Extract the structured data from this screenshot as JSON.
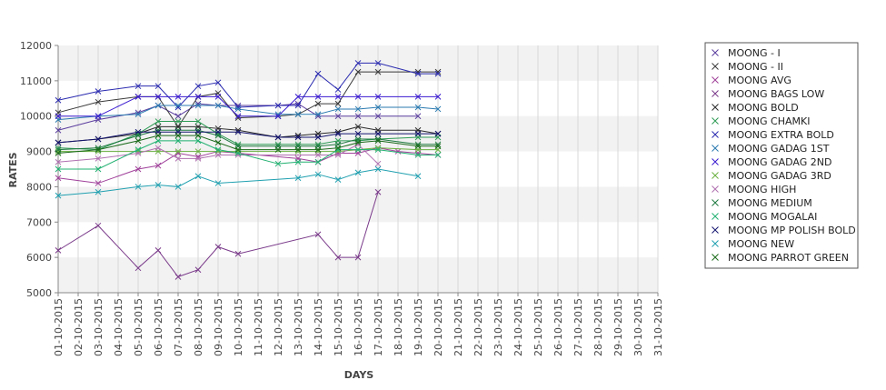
{
  "chart_data": {
    "type": "line",
    "title": "",
    "xlabel": "DAYS",
    "ylabel": "RATES",
    "ylim": [
      5000,
      12000
    ],
    "yticks": [
      5000,
      6000,
      7000,
      8000,
      9000,
      10000,
      11000,
      12000
    ],
    "band_color": "#f2f2f2",
    "x": [
      "01-10-2015",
      "02-10-2015",
      "03-10-2015",
      "04-10-2015",
      "05-10-2015",
      "06-10-2015",
      "07-10-2015",
      "08-10-2015",
      "09-10-2015",
      "10-10-2015",
      "11-10-2015",
      "12-10-2015",
      "13-10-2015",
      "14-10-2015",
      "15-10-2015",
      "16-10-2015",
      "17-10-2015",
      "18-10-2015",
      "19-10-2015",
      "20-10-2015",
      "21-10-2015",
      "22-10-2015",
      "23-10-2015",
      "24-10-2015",
      "25-10-2015",
      "26-10-2015",
      "27-10-2015",
      "28-10-2015",
      "29-10-2015",
      "30-10-2015",
      "31-10-2015"
    ],
    "legend_position": "right",
    "series": [
      {
        "name": "MOONG - I",
        "color": "#5a3d9e",
        "points": [
          [
            0,
            9600
          ],
          [
            2,
            9900
          ],
          [
            4,
            10100
          ],
          [
            5,
            10300
          ],
          [
            6,
            10000
          ],
          [
            7,
            10350
          ],
          [
            8,
            10300
          ],
          [
            9,
            10300
          ],
          [
            11,
            10300
          ],
          [
            12,
            10350
          ],
          [
            13,
            10000
          ],
          [
            14,
            10000
          ],
          [
            15,
            10000
          ],
          [
            16,
            10000
          ],
          [
            18,
            10000
          ]
        ]
      },
      {
        "name": "MOONG - II",
        "color": "#3a3a3a",
        "points": [
          [
            0,
            10100
          ],
          [
            2,
            10400
          ],
          [
            4,
            10550
          ],
          [
            5,
            10550
          ],
          [
            6,
            9700
          ],
          [
            7,
            10550
          ],
          [
            8,
            10650
          ],
          [
            9,
            9950
          ],
          [
            11,
            10000
          ],
          [
            12,
            10050
          ],
          [
            13,
            10350
          ],
          [
            14,
            10350
          ],
          [
            15,
            11250
          ],
          [
            16,
            11250
          ],
          [
            18,
            11250
          ],
          [
            19,
            11250
          ]
        ]
      },
      {
        "name": "MOONG AVG",
        "color": "#a0409a",
        "points": [
          [
            0,
            8250
          ],
          [
            2,
            8100
          ],
          [
            4,
            8500
          ],
          [
            5,
            8600
          ],
          [
            6,
            8950
          ],
          [
            7,
            8850
          ],
          [
            8,
            9000
          ],
          [
            9,
            8950
          ],
          [
            12,
            8800
          ],
          [
            13,
            8700
          ],
          [
            14,
            8950
          ],
          [
            15,
            8950
          ],
          [
            16,
            9100
          ],
          [
            17,
            9000
          ],
          [
            18,
            8950
          ],
          [
            19,
            8900
          ]
        ]
      },
      {
        "name": "MOONG BAGS LOW",
        "color": "#7a3a8a",
        "points": [
          [
            0,
            6200
          ],
          [
            2,
            6900
          ],
          [
            4,
            5700
          ],
          [
            5,
            6200
          ],
          [
            6,
            5450
          ],
          [
            7,
            5650
          ],
          [
            8,
            6300
          ],
          [
            9,
            6100
          ],
          [
            13,
            6650
          ],
          [
            14,
            6000
          ],
          [
            15,
            6000
          ],
          [
            16,
            7850
          ]
        ]
      },
      {
        "name": "MOONG BOLD",
        "color": "#2a2a2a",
        "points": [
          [
            0,
            9250
          ],
          [
            2,
            9350
          ],
          [
            4,
            9500
          ],
          [
            5,
            9700
          ],
          [
            6,
            9700
          ],
          [
            7,
            9700
          ],
          [
            8,
            9650
          ],
          [
            9,
            9600
          ],
          [
            11,
            9400
          ],
          [
            12,
            9450
          ],
          [
            13,
            9500
          ],
          [
            14,
            9550
          ],
          [
            15,
            9700
          ],
          [
            16,
            9600
          ],
          [
            18,
            9600
          ],
          [
            19,
            9500
          ]
        ]
      },
      {
        "name": "MOONG CHAMKI",
        "color": "#2e9c55",
        "points": [
          [
            0,
            9100
          ],
          [
            2,
            9050
          ],
          [
            4,
            9500
          ],
          [
            5,
            9850
          ],
          [
            6,
            9850
          ],
          [
            7,
            9850
          ],
          [
            8,
            9500
          ],
          [
            9,
            9200
          ],
          [
            11,
            9200
          ],
          [
            12,
            9200
          ],
          [
            13,
            9200
          ],
          [
            14,
            9300
          ],
          [
            15,
            9300
          ],
          [
            16,
            9350
          ],
          [
            18,
            9400
          ],
          [
            19,
            9400
          ]
        ]
      },
      {
        "name": "MOONG EXTRA BOLD",
        "color": "#2a2ab0",
        "points": [
          [
            0,
            10450
          ],
          [
            2,
            10700
          ],
          [
            4,
            10850
          ],
          [
            5,
            10850
          ],
          [
            6,
            10250
          ],
          [
            7,
            10850
          ],
          [
            8,
            10950
          ],
          [
            9,
            10250
          ],
          [
            11,
            10300
          ],
          [
            12,
            10300
          ],
          [
            13,
            11200
          ],
          [
            14,
            10750
          ],
          [
            15,
            11500
          ],
          [
            16,
            11500
          ],
          [
            18,
            11200
          ],
          [
            19,
            11200
          ]
        ]
      },
      {
        "name": "MOONG GADAG 1ST",
        "color": "#2a7ab0",
        "points": [
          [
            0,
            9900
          ],
          [
            2,
            10000
          ],
          [
            4,
            10050
          ],
          [
            5,
            10300
          ],
          [
            6,
            10300
          ],
          [
            7,
            10300
          ],
          [
            8,
            10300
          ],
          [
            9,
            10200
          ],
          [
            11,
            10050
          ],
          [
            12,
            10050
          ],
          [
            13,
            10050
          ],
          [
            14,
            10200
          ],
          [
            15,
            10200
          ],
          [
            16,
            10250
          ],
          [
            18,
            10250
          ],
          [
            19,
            10200
          ]
        ]
      },
      {
        "name": "MOONG GADAG 2ND",
        "color": "#3a1ad0",
        "points": [
          [
            0,
            10000
          ],
          [
            2,
            10000
          ],
          [
            4,
            10550
          ],
          [
            5,
            10550
          ],
          [
            6,
            10550
          ],
          [
            7,
            10550
          ],
          [
            8,
            10550
          ],
          [
            9,
            10000
          ],
          [
            11,
            10000
          ],
          [
            12,
            10550
          ],
          [
            13,
            10550
          ],
          [
            14,
            10550
          ],
          [
            15,
            10550
          ],
          [
            16,
            10550
          ],
          [
            18,
            10550
          ],
          [
            19,
            10550
          ]
        ]
      },
      {
        "name": "MOONG GADAG 3RD",
        "color": "#6ab040",
        "points": [
          [
            0,
            9000
          ],
          [
            2,
            9000
          ],
          [
            4,
            9000
          ],
          [
            5,
            9000
          ],
          [
            6,
            9000
          ],
          [
            7,
            9000
          ],
          [
            8,
            9000
          ],
          [
            9,
            9000
          ],
          [
            12,
            9000
          ],
          [
            13,
            9000
          ],
          [
            14,
            9000
          ],
          [
            15,
            9050
          ],
          [
            16,
            9100
          ],
          [
            18,
            9050
          ],
          [
            19,
            9050
          ]
        ]
      },
      {
        "name": "MOONG HIGH",
        "color": "#b070b0",
        "points": [
          [
            0,
            8700
          ],
          [
            2,
            8800
          ],
          [
            4,
            8950
          ],
          [
            5,
            9100
          ],
          [
            6,
            8800
          ],
          [
            7,
            8800
          ],
          [
            8,
            8900
          ],
          [
            9,
            8900
          ],
          [
            13,
            8900
          ],
          [
            14,
            8900
          ],
          [
            15,
            9200
          ],
          [
            16,
            8650
          ]
        ]
      },
      {
        "name": "MOONG MEDIUM",
        "color": "#1e7a40",
        "points": [
          [
            0,
            9050
          ],
          [
            2,
            9100
          ],
          [
            4,
            9450
          ],
          [
            5,
            9600
          ],
          [
            6,
            9600
          ],
          [
            7,
            9600
          ],
          [
            8,
            9450
          ],
          [
            9,
            9150
          ],
          [
            11,
            9150
          ],
          [
            12,
            9150
          ],
          [
            13,
            9150
          ],
          [
            14,
            9200
          ],
          [
            15,
            9350
          ],
          [
            16,
            9350
          ],
          [
            18,
            9200
          ],
          [
            19,
            9200
          ]
        ]
      },
      {
        "name": "MOONG MOGALAI",
        "color": "#20b070",
        "points": [
          [
            0,
            8500
          ],
          [
            2,
            8500
          ],
          [
            4,
            9050
          ],
          [
            5,
            9300
          ],
          [
            6,
            9300
          ],
          [
            7,
            9300
          ],
          [
            8,
            9050
          ],
          [
            9,
            8950
          ],
          [
            11,
            8650
          ],
          [
            12,
            8700
          ],
          [
            13,
            8700
          ],
          [
            14,
            9050
          ],
          [
            15,
            9050
          ],
          [
            16,
            9050
          ],
          [
            18,
            8900
          ],
          [
            19,
            8900
          ]
        ]
      },
      {
        "name": "MOONG MP POLISH BOLD",
        "color": "#141470",
        "points": [
          [
            0,
            9250
          ],
          [
            2,
            9350
          ],
          [
            4,
            9550
          ],
          [
            5,
            9550
          ],
          [
            6,
            9550
          ],
          [
            7,
            9550
          ],
          [
            8,
            9550
          ],
          [
            9,
            9550
          ],
          [
            11,
            9400
          ],
          [
            12,
            9400
          ],
          [
            13,
            9400
          ],
          [
            14,
            9500
          ],
          [
            15,
            9500
          ],
          [
            16,
            9500
          ],
          [
            18,
            9500
          ],
          [
            19,
            9500
          ]
        ]
      },
      {
        "name": "MOONG NEW",
        "color": "#20a0b0",
        "points": [
          [
            0,
            7750
          ],
          [
            2,
            7850
          ],
          [
            4,
            8000
          ],
          [
            5,
            8050
          ],
          [
            6,
            8000
          ],
          [
            7,
            8300
          ],
          [
            8,
            8100
          ],
          [
            12,
            8250
          ],
          [
            13,
            8350
          ],
          [
            14,
            8200
          ],
          [
            15,
            8400
          ],
          [
            16,
            8500
          ],
          [
            18,
            8300
          ]
        ]
      },
      {
        "name": "MOONG PARROT GREEN",
        "color": "#1a6a1a",
        "points": [
          [
            0,
            8950
          ],
          [
            2,
            9050
          ],
          [
            4,
            9300
          ],
          [
            5,
            9450
          ],
          [
            6,
            9450
          ],
          [
            7,
            9450
          ],
          [
            8,
            9250
          ],
          [
            9,
            9050
          ],
          [
            11,
            9050
          ],
          [
            12,
            9050
          ],
          [
            13,
            9050
          ],
          [
            14,
            9100
          ],
          [
            15,
            9250
          ],
          [
            16,
            9300
          ],
          [
            18,
            9150
          ],
          [
            19,
            9150
          ]
        ]
      }
    ]
  }
}
